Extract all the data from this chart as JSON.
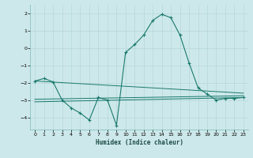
{
  "xlabel": "Humidex (Indice chaleur)",
  "background_color": "#cde8ea",
  "grid_color": "#afd4d6",
  "line_color": "#1a7a6e",
  "xlim": [
    -0.5,
    23.5
  ],
  "ylim": [
    -4.7,
    2.5
  ],
  "yticks": [
    -4,
    -3,
    -2,
    -1,
    0,
    1,
    2
  ],
  "xticks": [
    0,
    1,
    2,
    3,
    4,
    5,
    6,
    7,
    8,
    9,
    10,
    11,
    12,
    13,
    14,
    15,
    16,
    17,
    18,
    19,
    20,
    21,
    22,
    23
  ],
  "main_series": {
    "x": [
      0,
      1,
      2,
      3,
      4,
      5,
      6,
      7,
      8,
      9,
      10,
      11,
      12,
      13,
      14,
      15,
      16,
      17,
      18,
      19,
      20,
      21,
      22,
      23
    ],
    "y": [
      -1.9,
      -1.75,
      -1.95,
      -3.0,
      -3.45,
      -3.75,
      -4.15,
      -2.85,
      -3.0,
      -4.45,
      -0.25,
      0.2,
      0.75,
      1.6,
      1.95,
      1.75,
      0.75,
      -0.85,
      -2.3,
      -2.65,
      -3.0,
      -2.9,
      -2.9,
      -2.85
    ]
  },
  "trend_lines": [
    {
      "x": [
        0,
        23
      ],
      "y": [
        -1.9,
        -2.6
      ]
    },
    {
      "x": [
        0,
        23
      ],
      "y": [
        -2.95,
        -2.75
      ]
    },
    {
      "x": [
        0,
        23
      ],
      "y": [
        -3.1,
        -2.85
      ]
    }
  ]
}
